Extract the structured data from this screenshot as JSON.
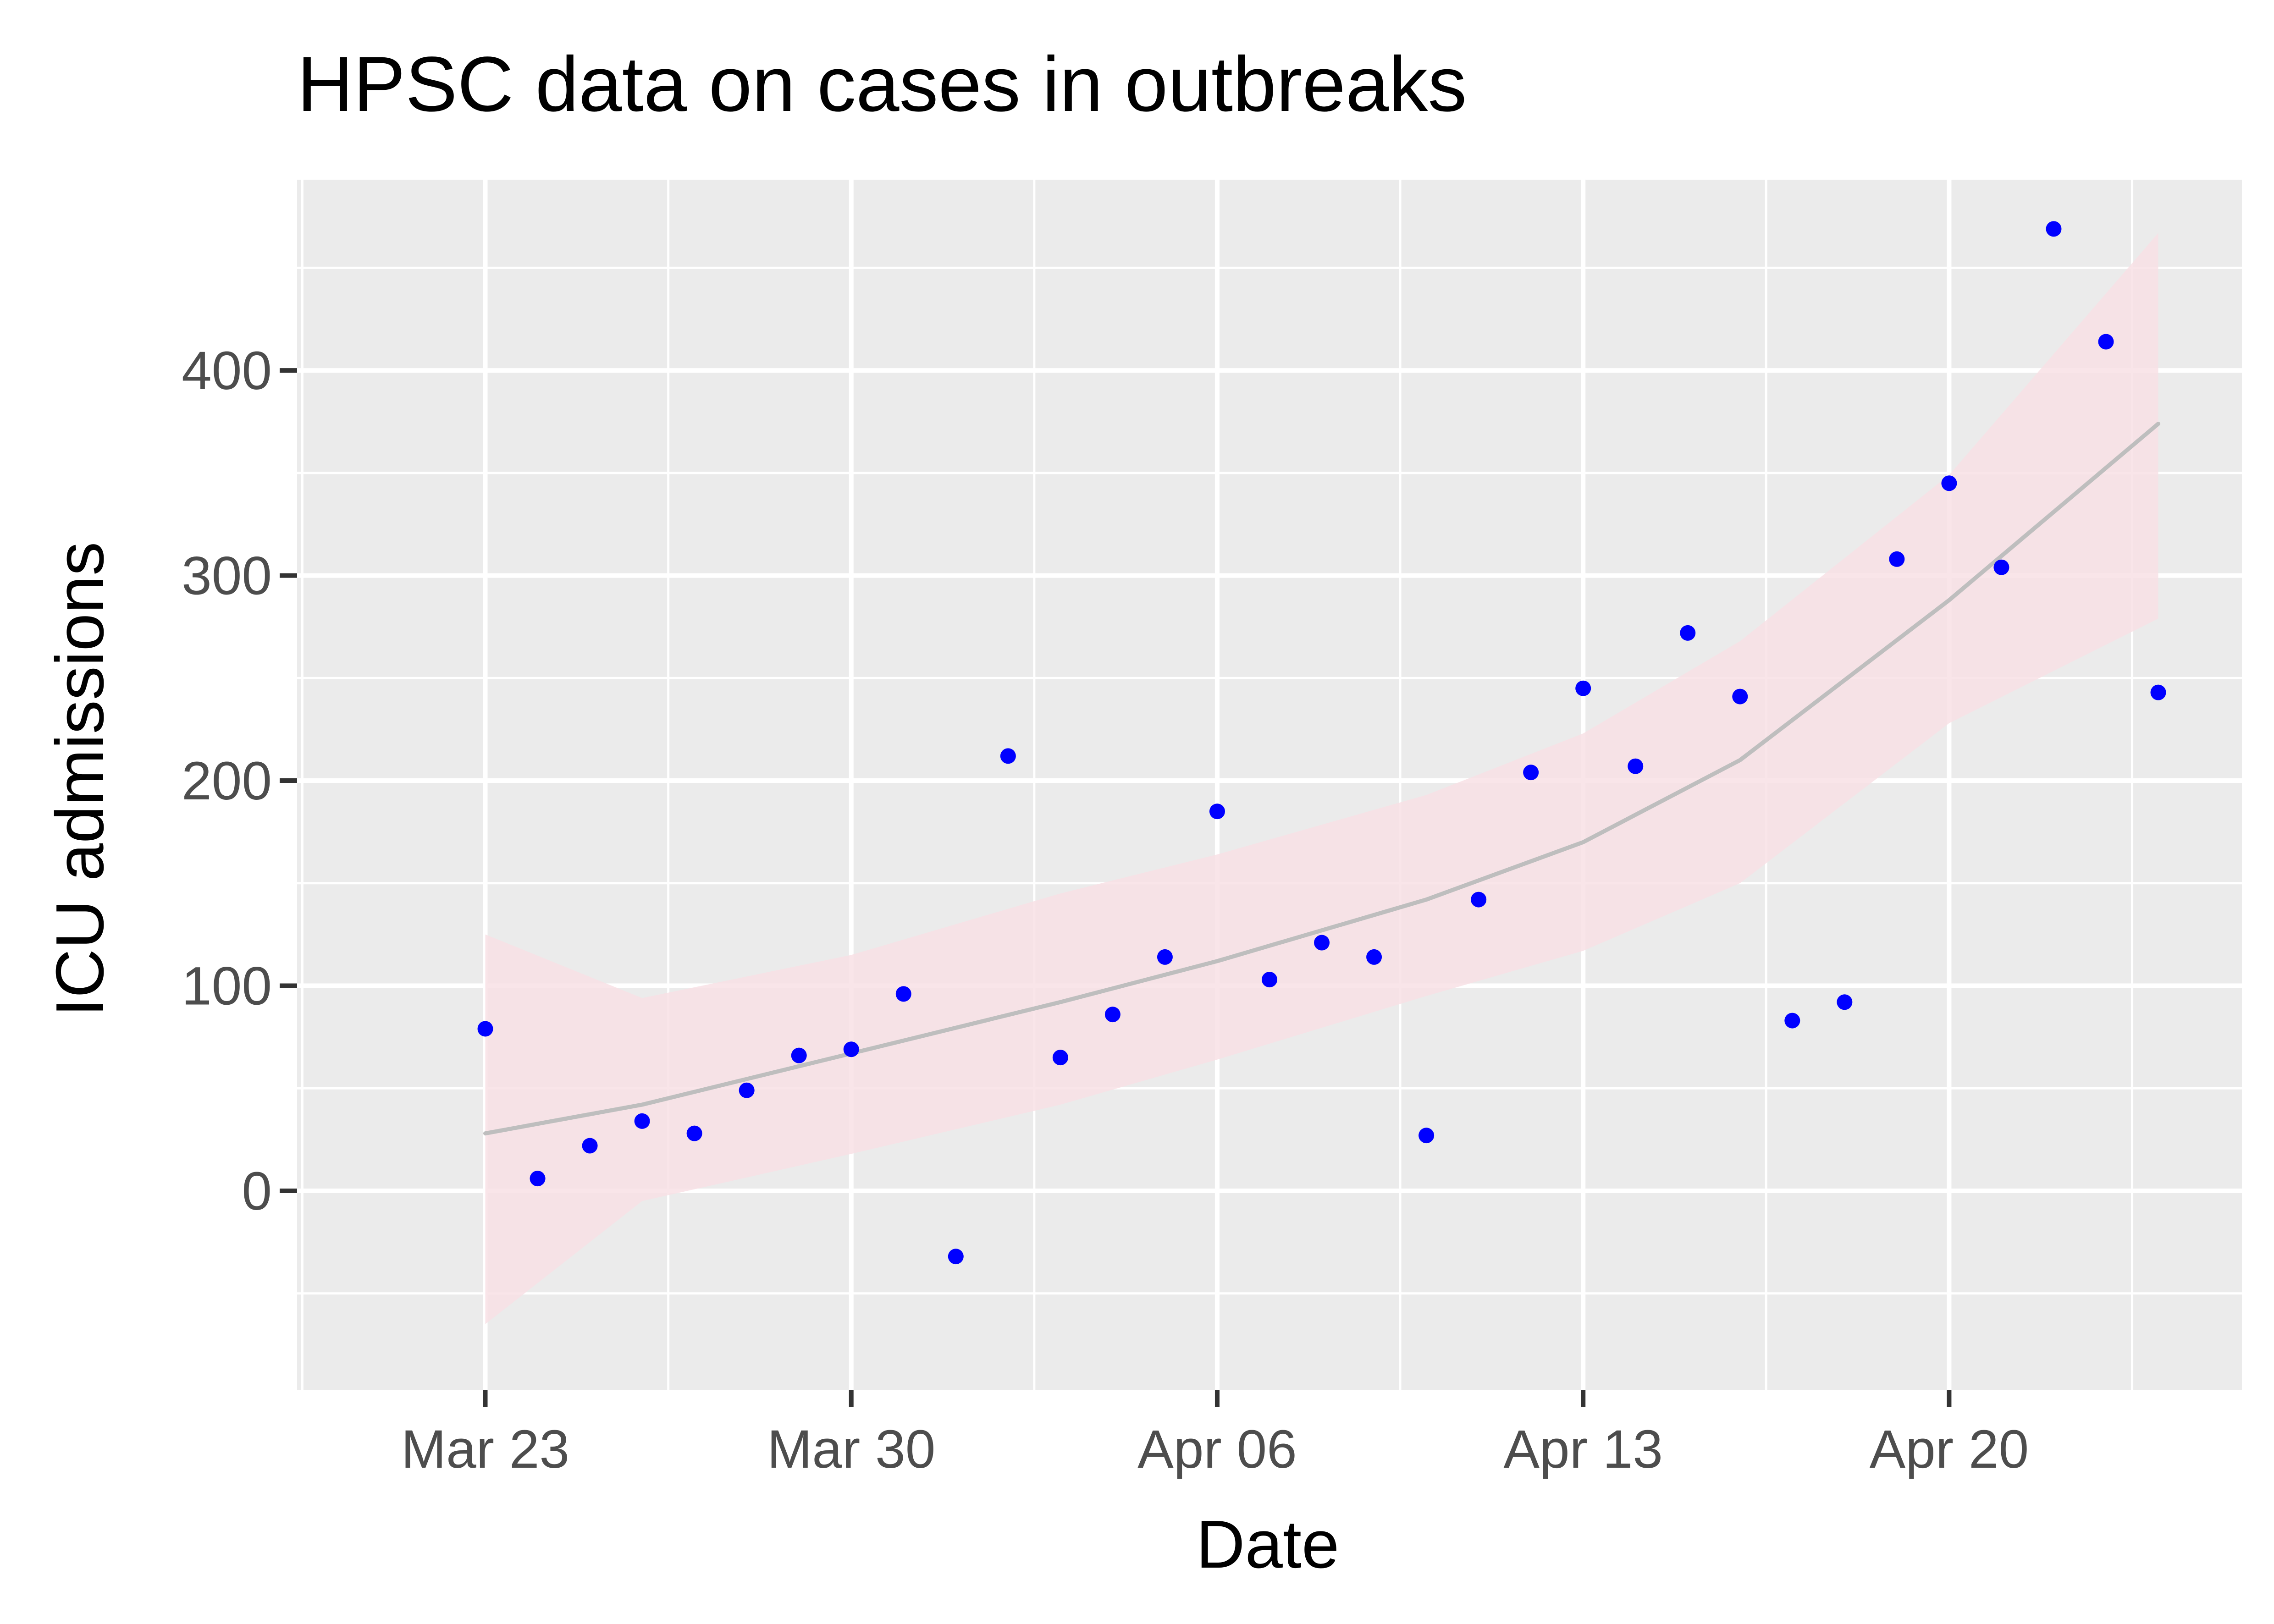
{
  "chart_data": {
    "type": "scatter",
    "title": "HPSC data on cases in outbreaks",
    "xlabel": "Date",
    "ylabel": "ICU admissions",
    "x_tick_labels": [
      "Mar 23",
      "Mar 30",
      "Apr 06",
      "Apr 13",
      "Apr 20"
    ],
    "x_tick_dates": [
      "2020-03-23",
      "2020-03-30",
      "2020-04-06",
      "2020-04-13",
      "2020-04-20"
    ],
    "y_tick_labels": [
      "0",
      "100",
      "200",
      "300",
      "400"
    ],
    "y_tick_values": [
      0,
      100,
      200,
      300,
      400
    ],
    "xlim": [
      "2020-03-19.4",
      "2020-04-25.6"
    ],
    "ylim": [
      -97,
      493
    ],
    "grid": true,
    "legend": "none",
    "colors": {
      "panel_background": "#EBEBEB",
      "grid": "#FFFFFF",
      "points": "#0000FF",
      "smooth_line": "#BEBEBE",
      "confidence_band": "#F8E1E5"
    },
    "series": [
      {
        "type": "points",
        "x": [
          "2020-03-23",
          "2020-03-24",
          "2020-03-25",
          "2020-03-26",
          "2020-03-27",
          "2020-03-28",
          "2020-03-29",
          "2020-03-30",
          "2020-03-31",
          "2020-04-01",
          "2020-04-02",
          "2020-04-03",
          "2020-04-04",
          "2020-04-05",
          "2020-04-06",
          "2020-04-07",
          "2020-04-08",
          "2020-04-09",
          "2020-04-10",
          "2020-04-11",
          "2020-04-12",
          "2020-04-13",
          "2020-04-14",
          "2020-04-15",
          "2020-04-16",
          "2020-04-17",
          "2020-04-18",
          "2020-04-19",
          "2020-04-20",
          "2020-04-21",
          "2020-04-22",
          "2020-04-23",
          "2020-04-24"
        ],
        "y": [
          79,
          6,
          22,
          34,
          28,
          49,
          66,
          69,
          96,
          -32,
          212,
          65,
          86,
          114,
          185,
          103,
          121,
          114,
          27,
          142,
          204,
          245,
          207,
          272,
          241,
          83,
          92,
          308,
          345,
          304,
          469,
          414,
          243
        ]
      },
      {
        "type": "smooth",
        "x": [
          "2020-03-23",
          "2020-03-26",
          "2020-03-30",
          "2020-04-03",
          "2020-04-06",
          "2020-04-10",
          "2020-04-13",
          "2020-04-16",
          "2020-04-20",
          "2020-04-24"
        ],
        "y": [
          28,
          42,
          67,
          92,
          112,
          142,
          170,
          210,
          288,
          374
        ],
        "ci_lower": [
          -65,
          -5,
          18,
          42,
          64,
          95,
          117,
          150,
          228,
          279
        ],
        "ci_upper": [
          125,
          94,
          115,
          145,
          164,
          193,
          223,
          268,
          349,
          467
        ]
      }
    ]
  }
}
